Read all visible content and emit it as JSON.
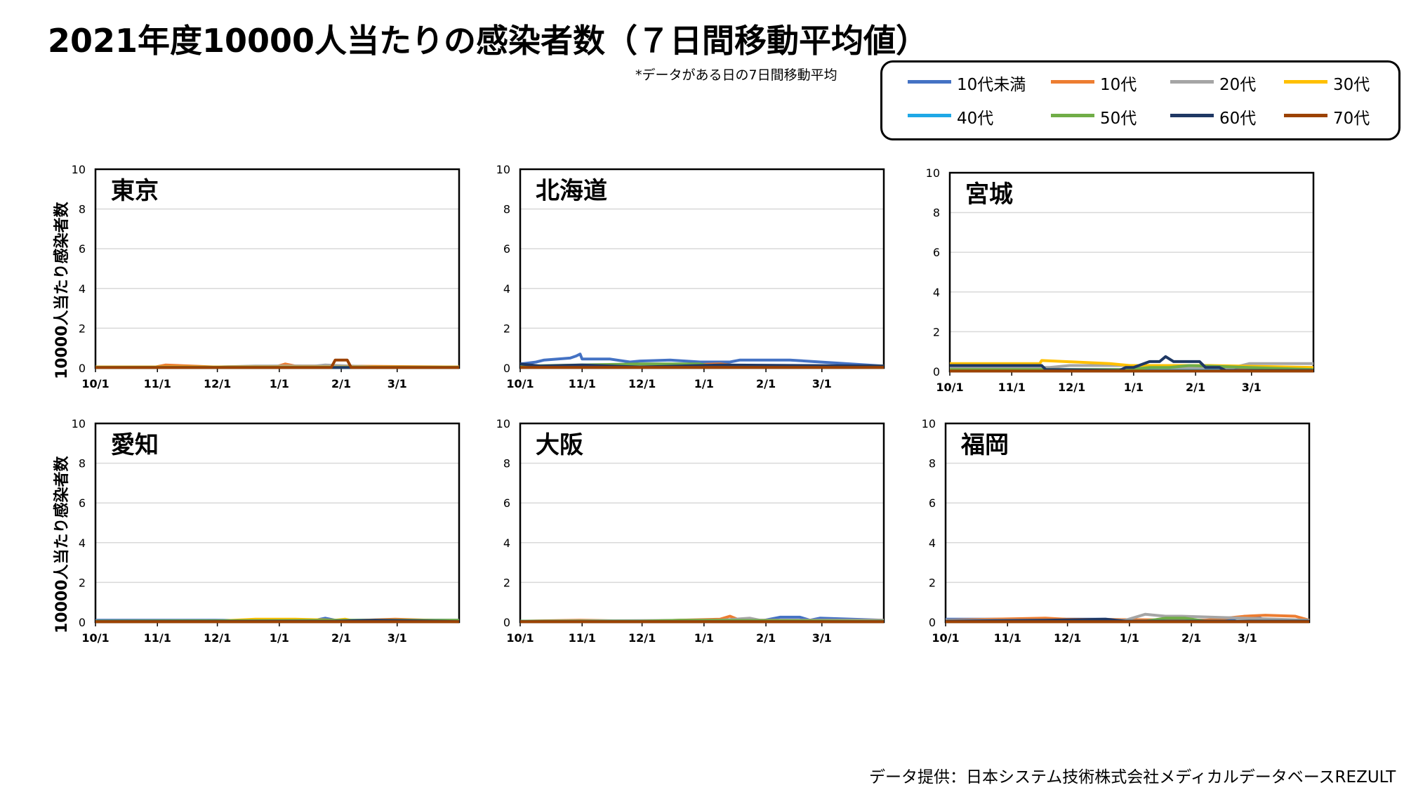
{
  "title": "2021年度10000人当たりの感染者数（７日間移動平均値）",
  "note": "*データがある日の7日間移動平均",
  "source": "データ提供：日本システム技術株式会社メディカルデータベースREZULT",
  "ylabel": "10000人当たり感染者数",
  "legend": [
    {
      "name": "10代未満",
      "color": "#4472C4"
    },
    {
      "name": "10代",
      "color": "#ED7D31"
    },
    {
      "name": "20代",
      "color": "#A5A5A5"
    },
    {
      "name": "30代",
      "color": "#FFC000"
    },
    {
      "name": "40代",
      "color": "#1FA8E6"
    },
    {
      "name": "50代",
      "color": "#70AD47"
    },
    {
      "name": "60代",
      "color": "#1F3864"
    },
    {
      "name": "70代",
      "color": "#9C4200"
    }
  ],
  "chart_data": [
    {
      "type": "line",
      "title": "東京",
      "x_ticks": [
        "10/1",
        "11/1",
        "12/1",
        "1/1",
        "2/1",
        "3/1"
      ],
      "ylim": [
        0,
        10
      ],
      "y_ticks": [
        0,
        2,
        4,
        6,
        8,
        10
      ],
      "grid": true,
      "x_range": [
        0,
        182
      ],
      "series": [
        {
          "name": "10代未満",
          "x": [
            0,
            20,
            40,
            60,
            80,
            100,
            120,
            140,
            160,
            182
          ],
          "y": [
            0.05,
            0.05,
            0.05,
            0.05,
            0.08,
            0.1,
            0.05,
            0.05,
            0.05,
            0.05
          ]
        },
        {
          "name": "10代",
          "x": [
            0,
            30,
            35,
            60,
            90,
            95,
            100,
            120,
            182
          ],
          "y": [
            0.05,
            0.05,
            0.15,
            0.05,
            0.05,
            0.2,
            0.1,
            0.1,
            0.05
          ]
        },
        {
          "name": "20代",
          "x": [
            0,
            60,
            80,
            110,
            115,
            140,
            182
          ],
          "y": [
            0.05,
            0.05,
            0.1,
            0.1,
            0.15,
            0.05,
            0.05
          ]
        },
        {
          "name": "30代",
          "x": [
            0,
            120,
            182
          ],
          "y": [
            0.05,
            0.05,
            0.05
          ]
        },
        {
          "name": "40代",
          "x": [
            0,
            182
          ],
          "y": [
            0.03,
            0.03
          ]
        },
        {
          "name": "50代",
          "x": [
            0,
            182
          ],
          "y": [
            0.03,
            0.03
          ]
        },
        {
          "name": "60代",
          "x": [
            0,
            182
          ],
          "y": [
            0.02,
            0.02
          ]
        },
        {
          "name": "70代",
          "x": [
            0,
            118,
            120,
            126,
            128,
            182
          ],
          "y": [
            0.02,
            0.02,
            0.4,
            0.4,
            0.02,
            0.02
          ]
        }
      ]
    },
    {
      "type": "line",
      "title": "北海道",
      "x_ticks": [
        "10/1",
        "11/1",
        "12/1",
        "1/1",
        "2/1",
        "3/1"
      ],
      "ylim": [
        0,
        10
      ],
      "y_ticks": [
        0,
        2,
        4,
        6,
        8,
        10
      ],
      "grid": true,
      "x_range": [
        0,
        182
      ],
      "series": [
        {
          "name": "10代未満",
          "x": [
            0,
            8,
            12,
            25,
            28,
            30,
            31,
            40,
            45,
            55,
            60,
            75,
            90,
            105,
            110,
            135,
            182
          ],
          "y": [
            0.2,
            0.3,
            0.4,
            0.5,
            0.6,
            0.7,
            0.45,
            0.45,
            0.45,
            0.3,
            0.35,
            0.4,
            0.3,
            0.3,
            0.4,
            0.4,
            0.1
          ]
        },
        {
          "name": "10代",
          "x": [
            0,
            60,
            100,
            110,
            182
          ],
          "y": [
            0.1,
            0.1,
            0.2,
            0.1,
            0.1
          ]
        },
        {
          "name": "20代",
          "x": [
            0,
            182
          ],
          "y": [
            0.1,
            0.1
          ]
        },
        {
          "name": "30代",
          "x": [
            0,
            30,
            32,
            182
          ],
          "y": [
            0.1,
            0.1,
            0.05,
            0.05
          ]
        },
        {
          "name": "40代",
          "x": [
            0,
            182
          ],
          "y": [
            0.05,
            0.05
          ]
        },
        {
          "name": "50代",
          "x": [
            0,
            60,
            90,
            95,
            182
          ],
          "y": [
            0.1,
            0.2,
            0.2,
            0.1,
            0.1
          ]
        },
        {
          "name": "60代",
          "x": [
            0,
            10,
            31,
            60,
            100,
            182
          ],
          "y": [
            0.2,
            0.1,
            0.15,
            0.05,
            0.15,
            0.1
          ]
        },
        {
          "name": "70代",
          "x": [
            0,
            182
          ],
          "y": [
            0.03,
            0.03
          ]
        }
      ]
    },
    {
      "type": "line",
      "title": "宮城",
      "x_ticks": [
        "10/1",
        "11/1",
        "12/1",
        "1/1",
        "2/1",
        "3/1"
      ],
      "ylim": [
        0,
        10
      ],
      "y_ticks": [
        0,
        2,
        4,
        6,
        8,
        10
      ],
      "grid": true,
      "x_range": [
        0,
        182
      ],
      "series": [
        {
          "name": "10代未満",
          "x": [
            0,
            182
          ],
          "y": [
            0.1,
            0.1
          ]
        },
        {
          "name": "10代",
          "x": [
            0,
            140,
            150,
            182
          ],
          "y": [
            0.05,
            0.05,
            0.1,
            0.1
          ]
        },
        {
          "name": "20代",
          "x": [
            0,
            50,
            60,
            90,
            100,
            140,
            150,
            165,
            182
          ],
          "y": [
            0.2,
            0.2,
            0.3,
            0.3,
            0.2,
            0.15,
            0.4,
            0.4,
            0.4
          ]
        },
        {
          "name": "30代",
          "x": [
            0,
            45,
            46,
            80,
            90,
            130,
            182
          ],
          "y": [
            0.4,
            0.4,
            0.55,
            0.4,
            0.3,
            0.3,
            0.2
          ]
        },
        {
          "name": "40代",
          "x": [
            0,
            182
          ],
          "y": [
            0.05,
            0.05
          ]
        },
        {
          "name": "50代",
          "x": [
            0,
            90,
            100,
            110,
            120,
            182
          ],
          "y": [
            0.1,
            0.1,
            0.2,
            0.2,
            0.3,
            0.1
          ]
        },
        {
          "name": "60代",
          "x": [
            0,
            46,
            48,
            85,
            88,
            92,
            100,
            105,
            108,
            112,
            125,
            128,
            135,
            138,
            182
          ],
          "y": [
            0.3,
            0.3,
            0.1,
            0.05,
            0.2,
            0.2,
            0.5,
            0.5,
            0.75,
            0.5,
            0.5,
            0.2,
            0.2,
            0.05,
            0.05
          ]
        },
        {
          "name": "70代",
          "x": [
            0,
            182
          ],
          "y": [
            0.02,
            0.02
          ]
        }
      ]
    },
    {
      "type": "line",
      "title": "愛知",
      "x_ticks": [
        "10/1",
        "11/1",
        "12/1",
        "1/1",
        "2/1",
        "3/1"
      ],
      "ylim": [
        0,
        10
      ],
      "y_ticks": [
        0,
        2,
        4,
        6,
        8,
        10
      ],
      "grid": true,
      "x_range": [
        0,
        182
      ],
      "series": [
        {
          "name": "10代未満",
          "x": [
            0,
            60,
            100,
            110,
            115,
            120,
            182
          ],
          "y": [
            0.1,
            0.1,
            0.05,
            0.1,
            0.2,
            0.1,
            0.1
          ]
        },
        {
          "name": "10代",
          "x": [
            0,
            120,
            150,
            182
          ],
          "y": [
            0.05,
            0.05,
            0.15,
            0.05
          ]
        },
        {
          "name": "20代",
          "x": [
            0,
            182
          ],
          "y": [
            0.05,
            0.05
          ]
        },
        {
          "name": "30代",
          "x": [
            0,
            60,
            80,
            100,
            120,
            125,
            130,
            182
          ],
          "y": [
            0.05,
            0.05,
            0.15,
            0.15,
            0.1,
            0.15,
            0.05,
            0.05
          ]
        },
        {
          "name": "40代",
          "x": [
            0,
            182
          ],
          "y": [
            0.05,
            0.05
          ]
        },
        {
          "name": "50代",
          "x": [
            0,
            140,
            182
          ],
          "y": [
            0.05,
            0.1,
            0.1
          ]
        },
        {
          "name": "60代",
          "x": [
            0,
            120,
            140,
            182
          ],
          "y": [
            0.03,
            0.05,
            0.1,
            0.03
          ]
        },
        {
          "name": "70代",
          "x": [
            0,
            182
          ],
          "y": [
            0.02,
            0.02
          ]
        }
      ]
    },
    {
      "type": "line",
      "title": "大阪",
      "x_ticks": [
        "10/1",
        "11/1",
        "12/1",
        "1/1",
        "2/1",
        "3/1"
      ],
      "ylim": [
        0,
        10
      ],
      "y_ticks": [
        0,
        2,
        4,
        6,
        8,
        10
      ],
      "grid": true,
      "x_range": [
        0,
        182
      ],
      "series": [
        {
          "name": "10代未満",
          "x": [
            0,
            90,
            120,
            130,
            140,
            145,
            150,
            182
          ],
          "y": [
            0.05,
            0.05,
            0.05,
            0.25,
            0.25,
            0.1,
            0.2,
            0.1
          ]
        },
        {
          "name": "10代",
          "x": [
            0,
            30,
            60,
            100,
            105,
            110,
            182
          ],
          "y": [
            0.05,
            0.1,
            0.05,
            0.15,
            0.3,
            0.1,
            0.1
          ]
        },
        {
          "name": "20代",
          "x": [
            0,
            100,
            115,
            120,
            182
          ],
          "y": [
            0.05,
            0.1,
            0.2,
            0.1,
            0.1
          ]
        },
        {
          "name": "30代",
          "x": [
            0,
            182
          ],
          "y": [
            0.05,
            0.05
          ]
        },
        {
          "name": "40代",
          "x": [
            0,
            182
          ],
          "y": [
            0.05,
            0.05
          ]
        },
        {
          "name": "50代",
          "x": [
            0,
            60,
            80,
            182
          ],
          "y": [
            0.05,
            0.05,
            0.1,
            0.05
          ]
        },
        {
          "name": "60代",
          "x": [
            0,
            182
          ],
          "y": [
            0.03,
            0.03
          ]
        },
        {
          "name": "70代",
          "x": [
            0,
            182
          ],
          "y": [
            0.02,
            0.02
          ]
        }
      ]
    },
    {
      "type": "line",
      "title": "福岡",
      "x_ticks": [
        "10/1",
        "11/1",
        "12/1",
        "1/1",
        "2/1",
        "3/1"
      ],
      "ylim": [
        0,
        10
      ],
      "y_ticks": [
        0,
        2,
        4,
        6,
        8,
        10
      ],
      "grid": true,
      "x_range": [
        0,
        182
      ],
      "series": [
        {
          "name": "10代未満",
          "x": [
            0,
            80,
            90,
            140,
            150,
            155,
            160,
            182
          ],
          "y": [
            0.15,
            0.15,
            0.1,
            0.1,
            0.3,
            0.3,
            0.1,
            0.1
          ]
        },
        {
          "name": "10代",
          "x": [
            0,
            50,
            60,
            130,
            150,
            160,
            175,
            182
          ],
          "y": [
            0.1,
            0.2,
            0.15,
            0.1,
            0.3,
            0.35,
            0.3,
            0.1
          ]
        },
        {
          "name": "20代",
          "x": [
            0,
            90,
            100,
            110,
            118,
            182
          ],
          "y": [
            0.1,
            0.1,
            0.4,
            0.3,
            0.3,
            0.1
          ]
        },
        {
          "name": "30代",
          "x": [
            0,
            182
          ],
          "y": [
            0.05,
            0.05
          ]
        },
        {
          "name": "40代",
          "x": [
            0,
            182
          ],
          "y": [
            0.05,
            0.05
          ]
        },
        {
          "name": "50代",
          "x": [
            0,
            100,
            110,
            120,
            130,
            182
          ],
          "y": [
            0.05,
            0.05,
            0.2,
            0.2,
            0.05,
            0.05
          ]
        },
        {
          "name": "60代",
          "x": [
            0,
            50,
            80,
            90,
            182
          ],
          "y": [
            0.05,
            0.1,
            0.15,
            0.05,
            0.05
          ]
        },
        {
          "name": "70代",
          "x": [
            0,
            182
          ],
          "y": [
            0.02,
            0.02
          ]
        }
      ]
    }
  ]
}
